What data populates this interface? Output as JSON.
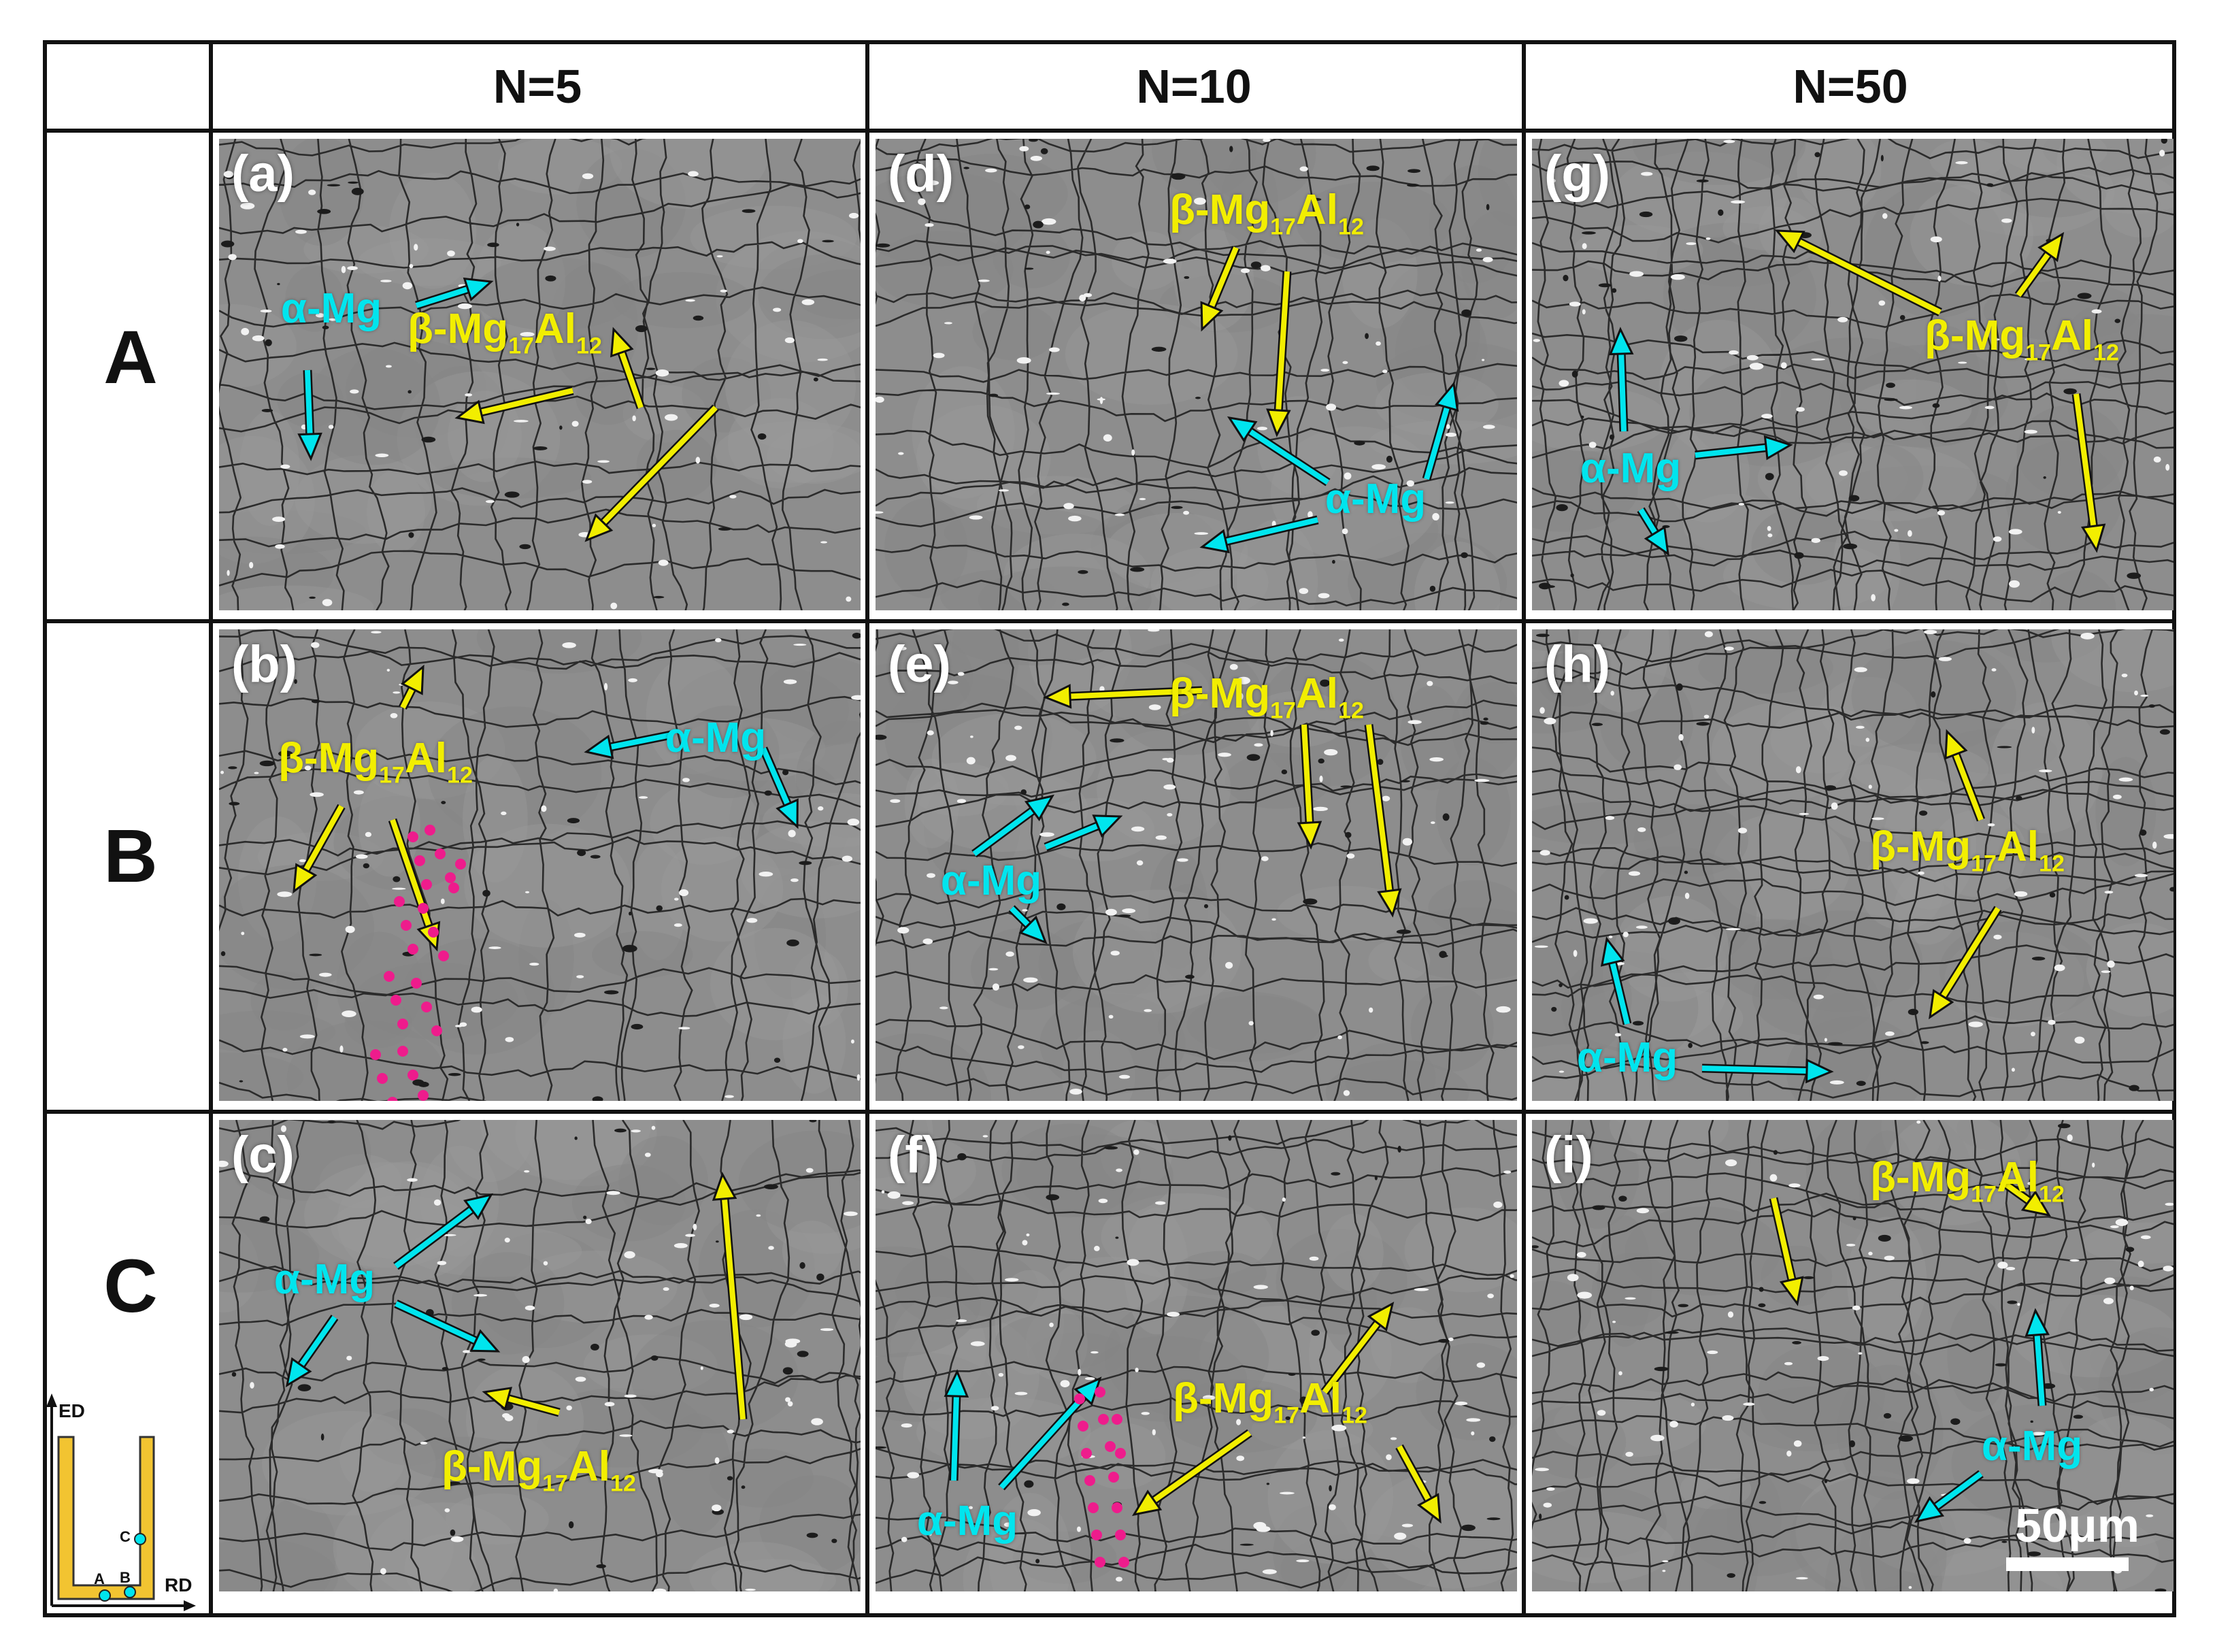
{
  "columns": [
    "N=5",
    "N=10",
    "N=50"
  ],
  "rows": [
    "A",
    "B",
    "C"
  ],
  "phase_labels": {
    "alpha": "α-Mg",
    "beta_main": "β-Mg",
    "beta_sub1": "17",
    "beta_al": "Al",
    "beta_sub2": "12"
  },
  "colors": {
    "alpha": "#00e5ee",
    "beta": "#f2ee00",
    "marker": "#ee1c8c",
    "schematic_fill": "#f2c431"
  },
  "panels": [
    {
      "letter": "(a)"
    },
    {
      "letter": "(b)"
    },
    {
      "letter": "(c)"
    },
    {
      "letter": "(d)"
    },
    {
      "letter": "(e)"
    },
    {
      "letter": "(f)"
    },
    {
      "letter": "(g)"
    },
    {
      "letter": "(h)"
    },
    {
      "letter": "(i)"
    }
  ],
  "scale_bar": {
    "label": "50μm"
  },
  "schematic": {
    "ed": "ED",
    "rd": "RD",
    "point_a": "A",
    "point_b": "B",
    "point_c": "C"
  }
}
